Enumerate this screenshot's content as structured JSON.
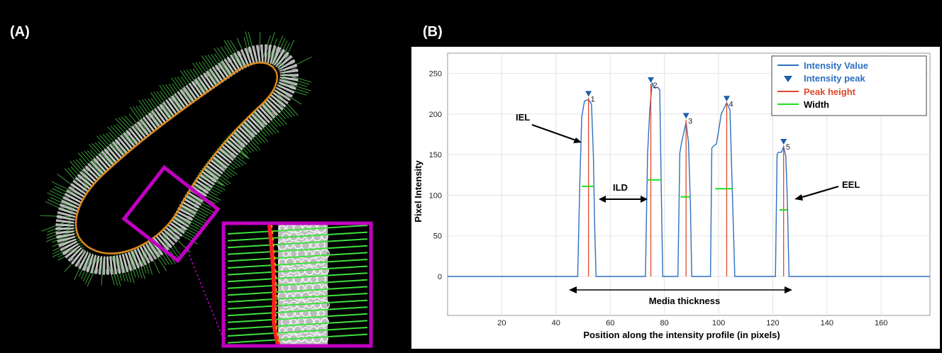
{
  "panels": {
    "a_label": "(A)",
    "b_label": "(B)"
  },
  "colors": {
    "intensity": "#2e6fc0",
    "peak_marker": "#1f5fad",
    "peak_height": "#e0482a",
    "width": "#22dd22",
    "inset_frame": "#c000c0",
    "centerline": "#e08a1a"
  },
  "chart_data": {
    "type": "line",
    "xlabel": "Position along the intensity profile (in pixels)",
    "ylabel": "Pixel Intensity",
    "xlim": [
      0,
      178
    ],
    "ylim": [
      -48,
      275
    ],
    "xticks": [
      20,
      40,
      60,
      80,
      100,
      120,
      140,
      160
    ],
    "yticks": [
      0,
      50,
      100,
      150,
      200,
      250
    ],
    "grid": true,
    "legend_position": "top-right",
    "legend": [
      {
        "label": "Intensity Value",
        "kind": "line",
        "color": "#2e6fc0"
      },
      {
        "label": "Intensity peak",
        "kind": "triangle",
        "color": "#1f5fad"
      },
      {
        "label": "Peak height",
        "kind": "line",
        "color": "#e0482a"
      },
      {
        "label": "Width",
        "kind": "line",
        "color": "#22dd22"
      }
    ],
    "series": [
      {
        "x": [
          0,
          48,
          48.8,
          49.5,
          50.5,
          52,
          53.1,
          53.8,
          54.3,
          54.8,
          73,
          73.8,
          74.6,
          75.5,
          76.5,
          77.5,
          78.3,
          78.8,
          79.4,
          85,
          85.7,
          86.4,
          88,
          88.9,
          89.6,
          90.1,
          97,
          97.5,
          98.2,
          99.2,
          101,
          103,
          104.2,
          105.2,
          106,
          121,
          121.6,
          122.1,
          123.2,
          124,
          124.8,
          125.4,
          126,
          178
        ],
        "y": [
          0,
          0,
          115,
          196,
          216,
          218,
          212,
          150,
          60,
          0,
          0,
          150,
          205,
          238,
          232,
          233,
          230,
          120,
          0,
          0,
          152,
          166,
          190,
          165,
          90,
          0,
          0,
          158,
          161,
          163,
          200,
          214,
          205,
          90,
          0,
          0,
          150,
          153,
          153,
          160,
          148,
          90,
          0,
          0
        ]
      }
    ],
    "peaks": [
      {
        "x": 52,
        "y": 224,
        "label": "1",
        "width_y": 111,
        "width_x0": 49.5,
        "width_x1": 54
      },
      {
        "x": 75,
        "y": 241,
        "label": "2",
        "width_y": 119,
        "width_x0": 73.6,
        "width_x1": 78.8
      },
      {
        "x": 88,
        "y": 197,
        "label": "3",
        "width_y": 98,
        "width_x0": 86,
        "width_x1": 89.5
      },
      {
        "x": 103,
        "y": 218,
        "label": "4",
        "width_y": 108,
        "width_x0": 98.8,
        "width_x1": 105.3
      },
      {
        "x": 124,
        "y": 165,
        "label": "5",
        "width_y": 82,
        "width_x0": 122.5,
        "width_x1": 125.3
      }
    ],
    "annotations": [
      {
        "text": "IEL"
      },
      {
        "text": "ILD"
      },
      {
        "text": "EEL"
      },
      {
        "text": "Media thickness"
      }
    ]
  }
}
